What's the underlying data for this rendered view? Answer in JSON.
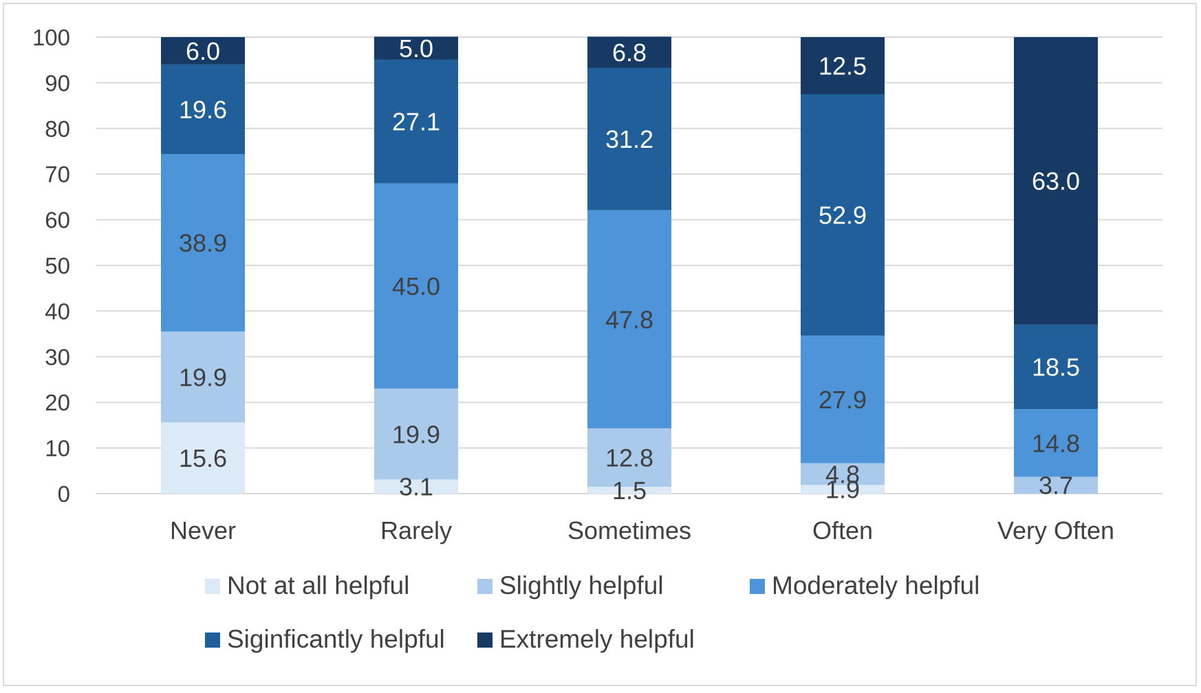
{
  "chart_data": {
    "type": "bar",
    "stacked": true,
    "title": "",
    "xlabel": "",
    "ylabel": "",
    "ylim": [
      0,
      100
    ],
    "yticks": [
      0,
      10,
      20,
      30,
      40,
      50,
      60,
      70,
      80,
      90,
      100
    ],
    "grid": true,
    "legend_position": "bottom",
    "categories": [
      "Never",
      "Rarely",
      "Sometimes",
      "Often",
      "Very Often"
    ],
    "series": [
      {
        "name": "Not at all helpful",
        "color": "#dce9f6",
        "label_color": "#404040",
        "values": [
          15.6,
          3.1,
          1.5,
          1.9,
          0.0
        ],
        "labels": [
          "15.6",
          "3.1",
          "1.5",
          "1.9",
          ""
        ]
      },
      {
        "name": "Slightly helpful",
        "color": "#a9caeb",
        "label_color": "#404040",
        "values": [
          19.9,
          19.9,
          12.8,
          4.8,
          3.7
        ],
        "labels": [
          "19.9",
          "19.9",
          "12.8",
          "4.8",
          "3.7"
        ]
      },
      {
        "name": "Moderately helpful",
        "color": "#4d94d9",
        "label_color": "#404040",
        "values": [
          38.9,
          45.0,
          47.8,
          27.9,
          14.8
        ],
        "labels": [
          "38.9",
          "45.0",
          "47.8",
          "27.9",
          "14.8"
        ]
      },
      {
        "name": "Siginficantly helpful",
        "color": "#215f9a",
        "label_color": "#ffffff",
        "values": [
          19.6,
          27.1,
          31.2,
          52.9,
          18.5
        ],
        "labels": [
          "19.6",
          "27.1",
          "31.2",
          "52.9",
          "18.5"
        ]
      },
      {
        "name": "Extremely helpful",
        "color": "#163a63",
        "label_color": "#ffffff",
        "values": [
          6.0,
          5.0,
          6.8,
          12.5,
          63.0
        ],
        "labels": [
          "6.0",
          "5.0",
          "6.8",
          "12.5",
          "63.0"
        ]
      }
    ]
  }
}
